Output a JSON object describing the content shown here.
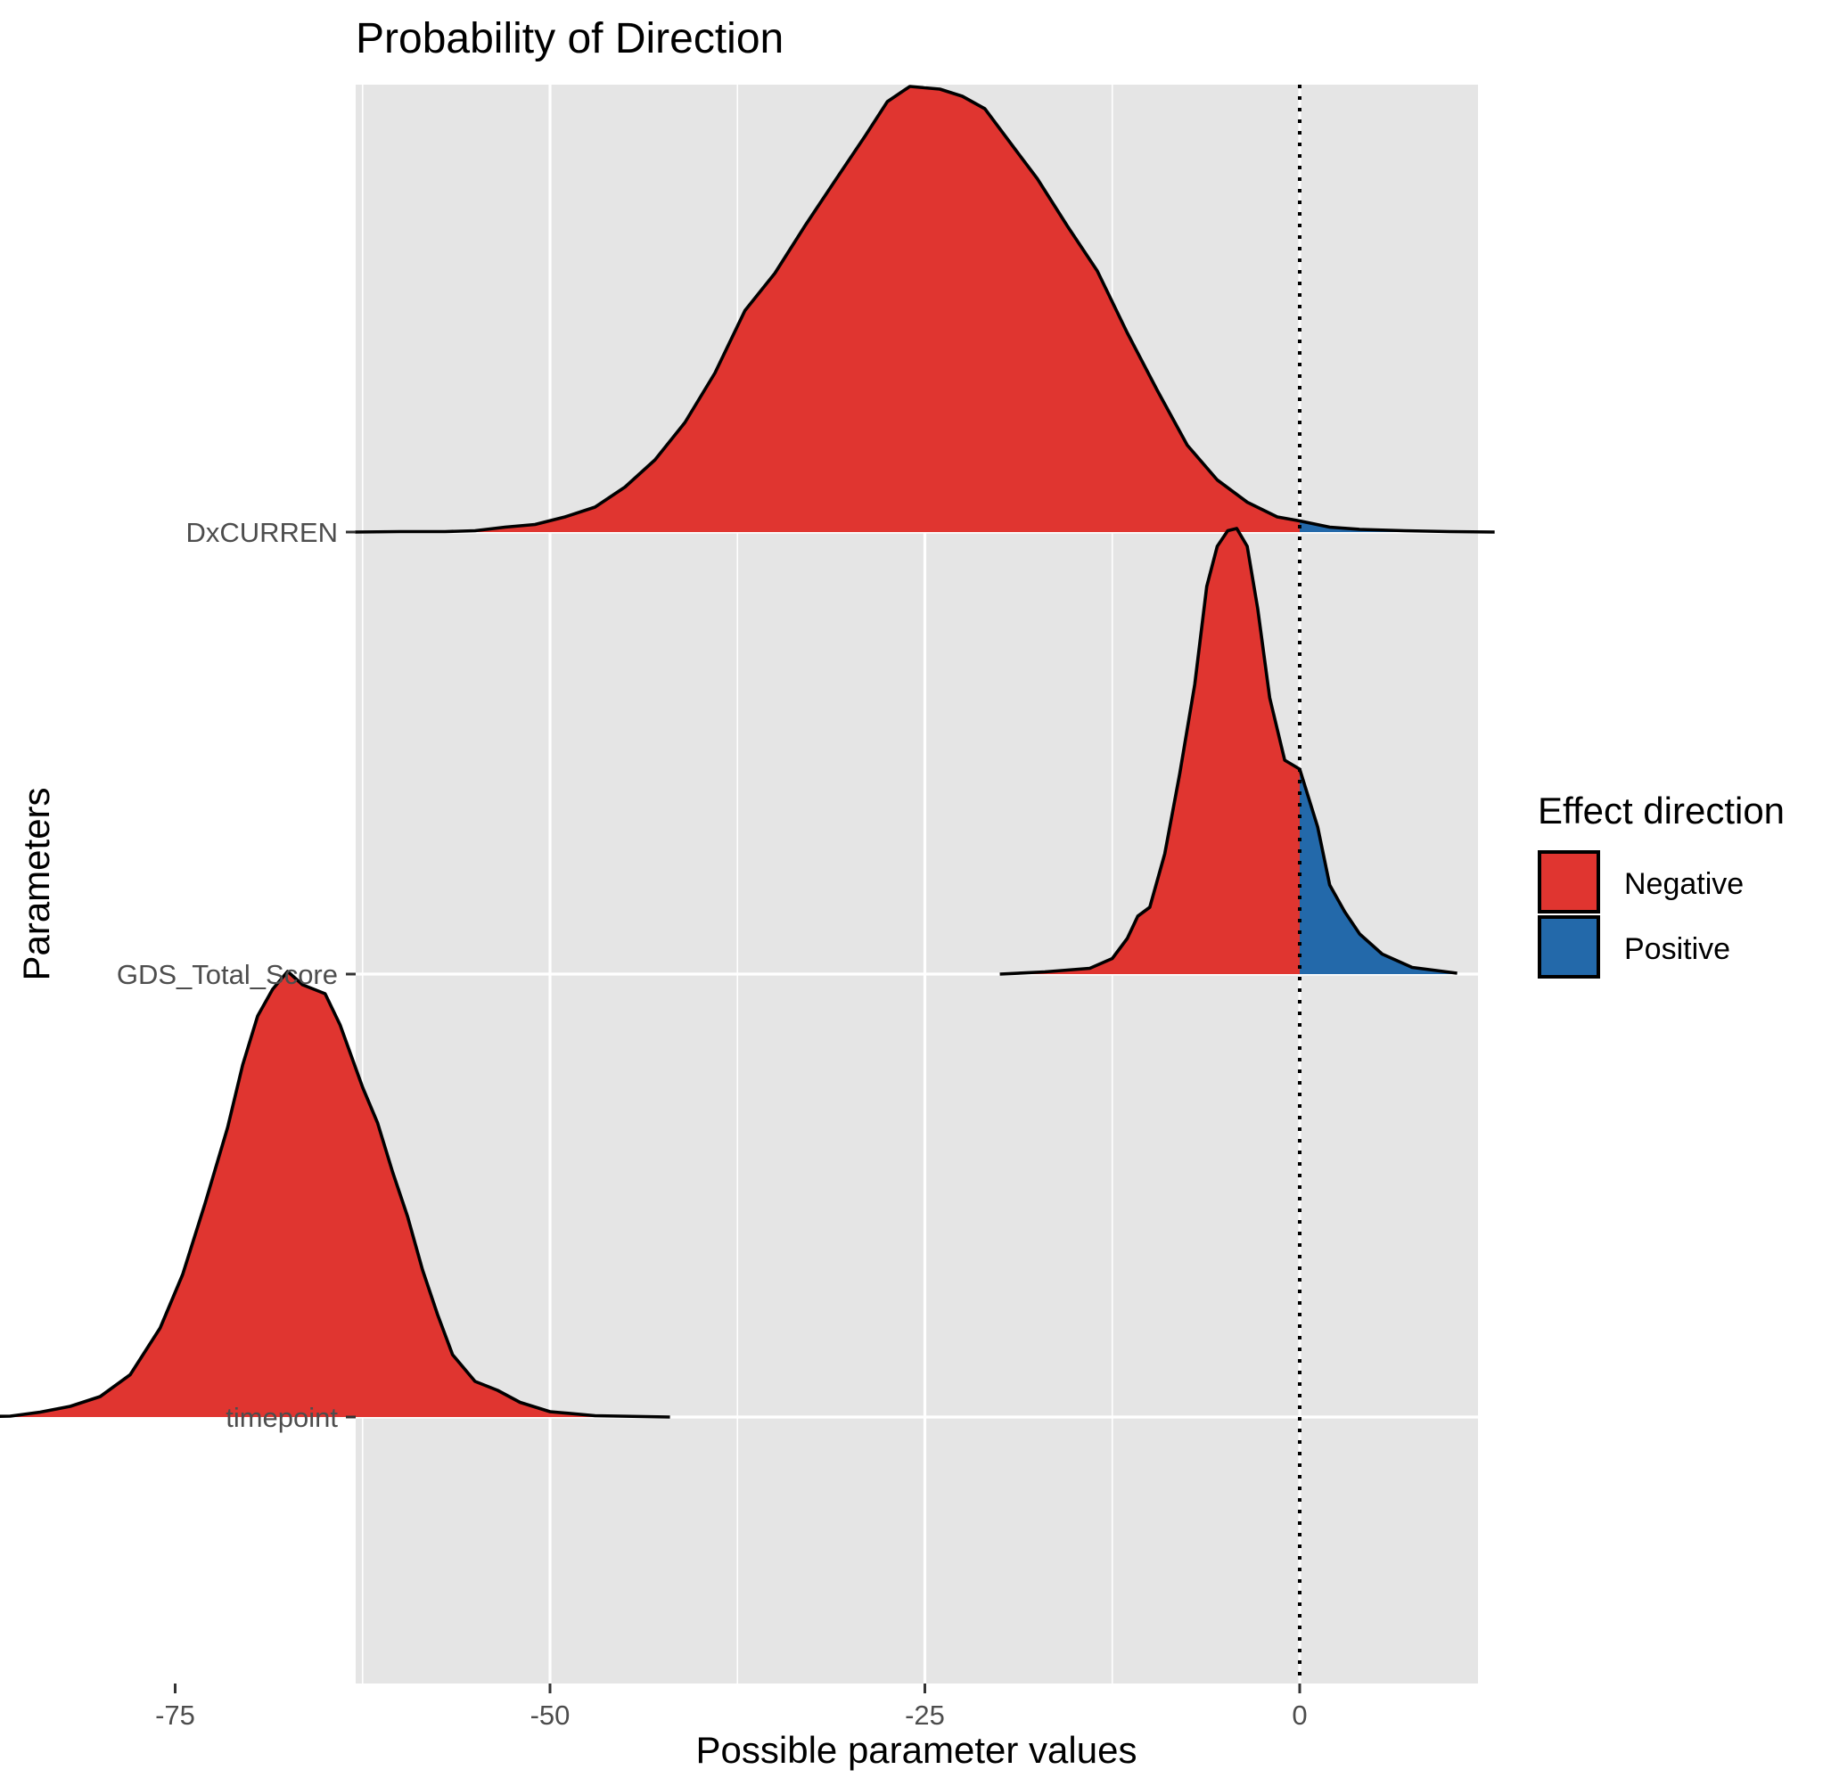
{
  "chart_data": {
    "type": "ridgeline-density",
    "title": "Probability of Direction",
    "xlabel": "Possible parameter values",
    "ylabel": "Parameters",
    "xlim": [
      -90,
      19
    ],
    "x_ticks": [
      -75,
      -50,
      -25,
      0
    ],
    "x_tick_labels": [
      "-75",
      "-50",
      "-25",
      "0"
    ],
    "x_minor_ticks": [
      -87.5,
      -62.5,
      -37.5,
      -12.5,
      12.5
    ],
    "reference_line": {
      "x": 0,
      "style": "dotted"
    },
    "grid": true,
    "legend": {
      "title": "Effect direction",
      "placement": "right",
      "entries": [
        {
          "label": "Negative",
          "color": "#e03530"
        },
        {
          "label": "Positive",
          "color": "#2369aa"
        }
      ]
    },
    "colors": {
      "negative": "#e03530",
      "positive": "#2369aa",
      "panel": "#e5e5e5",
      "grid": "#ffffff"
    },
    "series": [
      {
        "name": "DxCURREN",
        "density_scale": 1.0,
        "points": [
          [
            -63,
            0.0
          ],
          [
            -60,
            0.001
          ],
          [
            -57,
            0.001
          ],
          [
            -55,
            0.003
          ],
          [
            -53,
            0.011
          ],
          [
            -51,
            0.017
          ],
          [
            -49,
            0.034
          ],
          [
            -47,
            0.056
          ],
          [
            -45,
            0.101
          ],
          [
            -43,
            0.162
          ],
          [
            -41,
            0.246
          ],
          [
            -39,
            0.357
          ],
          [
            -37,
            0.497
          ],
          [
            -35,
            0.581
          ],
          [
            -33,
            0.687
          ],
          [
            -31,
            0.788
          ],
          [
            -29,
            0.888
          ],
          [
            -27.5,
            0.966
          ],
          [
            -26,
            1.0
          ],
          [
            -24,
            0.994
          ],
          [
            -22.5,
            0.978
          ],
          [
            -21,
            0.95
          ],
          [
            -19,
            0.86
          ],
          [
            -17.5,
            0.793
          ],
          [
            -15.5,
            0.687
          ],
          [
            -13.5,
            0.586
          ],
          [
            -11.5,
            0.447
          ],
          [
            -9.5,
            0.318
          ],
          [
            -7.5,
            0.195
          ],
          [
            -5.5,
            0.117
          ],
          [
            -3.5,
            0.067
          ],
          [
            -1.5,
            0.034
          ],
          [
            0,
            0.025
          ],
          [
            2,
            0.011
          ],
          [
            4,
            0.006
          ],
          [
            7,
            0.003
          ],
          [
            10,
            0.001
          ],
          [
            13,
            0.0
          ]
        ]
      },
      {
        "name": "GDS_Total_Score",
        "density_scale": 1.0,
        "points": [
          [
            -20,
            0.0
          ],
          [
            -17,
            0.005
          ],
          [
            -14,
            0.013
          ],
          [
            -12.5,
            0.035
          ],
          [
            -11.5,
            0.08
          ],
          [
            -10.8,
            0.13
          ],
          [
            -10,
            0.15
          ],
          [
            -9,
            0.27
          ],
          [
            -8,
            0.45
          ],
          [
            -7,
            0.65
          ],
          [
            -6.2,
            0.87
          ],
          [
            -5.5,
            0.96
          ],
          [
            -4.8,
            0.995
          ],
          [
            -4.2,
            1.0
          ],
          [
            -3.5,
            0.96
          ],
          [
            -2.8,
            0.82
          ],
          [
            -2,
            0.62
          ],
          [
            -1,
            0.48
          ],
          [
            0,
            0.46
          ],
          [
            1.2,
            0.33
          ],
          [
            2,
            0.2
          ],
          [
            3,
            0.14
          ],
          [
            4,
            0.09
          ],
          [
            5.5,
            0.045
          ],
          [
            7.5,
            0.015
          ],
          [
            10.5,
            0.002
          ]
        ]
      },
      {
        "name": "timepoint",
        "density_scale": 1.0,
        "points": [
          [
            -89,
            0.0
          ],
          [
            -86,
            0.002
          ],
          [
            -84,
            0.011
          ],
          [
            -82,
            0.024
          ],
          [
            -80,
            0.046
          ],
          [
            -78,
            0.095
          ],
          [
            -76,
            0.2
          ],
          [
            -74.5,
            0.32
          ],
          [
            -73,
            0.48
          ],
          [
            -71.5,
            0.65
          ],
          [
            -70.5,
            0.79
          ],
          [
            -69.5,
            0.9
          ],
          [
            -68.5,
            0.96
          ],
          [
            -67.5,
            1.0
          ],
          [
            -66.5,
            0.97
          ],
          [
            -65,
            0.95
          ],
          [
            -64,
            0.88
          ],
          [
            -62.5,
            0.74
          ],
          [
            -61.5,
            0.66
          ],
          [
            -60.5,
            0.55
          ],
          [
            -59.5,
            0.45
          ],
          [
            -58.5,
            0.33
          ],
          [
            -57.5,
            0.23
          ],
          [
            -56.5,
            0.14
          ],
          [
            -55,
            0.08
          ],
          [
            -53.5,
            0.06
          ],
          [
            -52,
            0.033
          ],
          [
            -50,
            0.012
          ],
          [
            -47,
            0.003
          ],
          [
            -42,
            0.0
          ]
        ]
      }
    ]
  }
}
